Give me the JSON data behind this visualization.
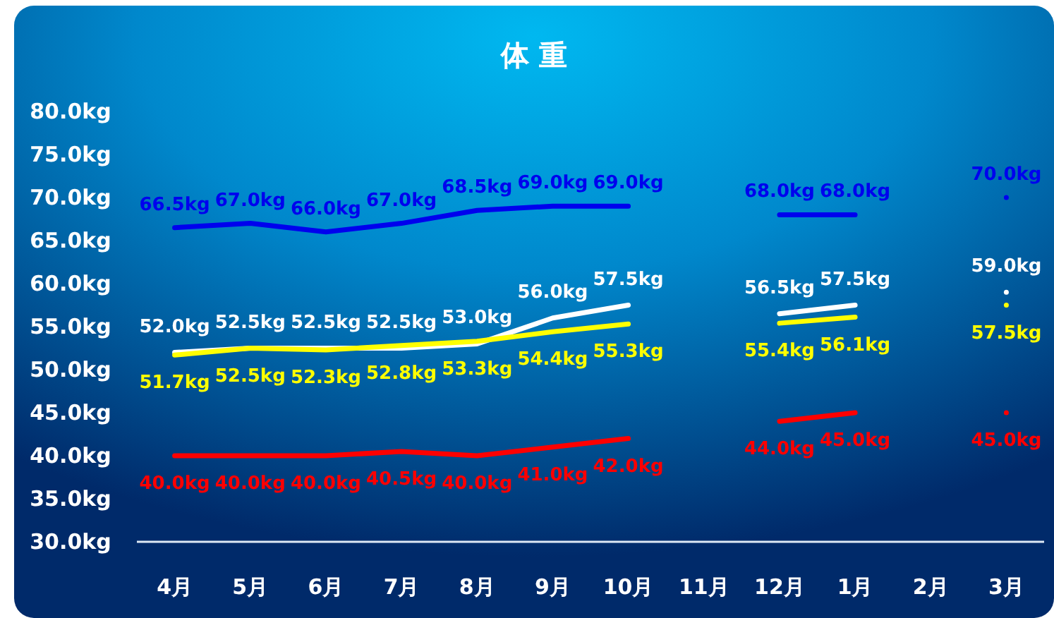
{
  "chart_data": {
    "type": "line",
    "title": "体 重",
    "categories": [
      "4月",
      "5月",
      "6月",
      "7月",
      "8月",
      "9月",
      "10月",
      "11月",
      "12月",
      "1月",
      "2月",
      "3月"
    ],
    "ylim": [
      30,
      80
    ],
    "yticks": [
      {
        "value": 30,
        "label": "30.0kg"
      },
      {
        "value": 35,
        "label": "35.0kg"
      },
      {
        "value": 40,
        "label": "40.0kg"
      },
      {
        "value": 45,
        "label": "45.0kg"
      },
      {
        "value": 50,
        "label": "50.0kg"
      },
      {
        "value": 55,
        "label": "55.0kg"
      },
      {
        "value": 60,
        "label": "60.0kg"
      },
      {
        "value": 65,
        "label": "65.0kg"
      },
      {
        "value": 70,
        "label": "70.0kg"
      },
      {
        "value": 75,
        "label": "75.0kg"
      },
      {
        "value": 80,
        "label": "80.0kg"
      }
    ],
    "grid": false,
    "marker": "none",
    "line_style": "solid",
    "series": [
      {
        "color": "#0000ee",
        "values": [
          66.5,
          67.0,
          66.0,
          67.0,
          68.5,
          69.0,
          69.0,
          null,
          68.0,
          68.0,
          null,
          70.0
        ],
        "value_labels": [
          "66.5kg",
          "67.0kg",
          "66.0kg",
          "67.0kg",
          "68.5kg",
          "69.0kg",
          "69.0kg",
          null,
          "68.0kg",
          "68.0kg",
          null,
          "70.0kg"
        ]
      },
      {
        "color": "#ffffff",
        "values": [
          52.0,
          52.5,
          52.5,
          52.5,
          53.0,
          56.0,
          57.5,
          null,
          56.5,
          57.5,
          null,
          59.0
        ],
        "value_labels": [
          "52.0kg",
          "52.5kg",
          "52.5kg",
          "52.5kg",
          "53.0kg",
          "56.0kg",
          "57.5kg",
          null,
          "56.5kg",
          "57.5kg",
          null,
          "59.0kg"
        ]
      },
      {
        "color": "#ffff00",
        "values": [
          51.7,
          52.5,
          52.3,
          52.8,
          53.3,
          54.4,
          55.3,
          null,
          55.4,
          56.1,
          null,
          57.5
        ],
        "value_labels": [
          "51.7kg",
          "52.5kg",
          "52.3kg",
          "52.8kg",
          "53.3kg",
          "54.4kg",
          "55.3kg",
          null,
          "55.4kg",
          "56.1kg",
          null,
          "57.5kg"
        ]
      },
      {
        "color": "#ff0000",
        "values": [
          40.0,
          40.0,
          40.0,
          40.5,
          40.0,
          41.0,
          42.0,
          null,
          44.0,
          45.0,
          null,
          45.0
        ],
        "value_labels": [
          "40.0kg",
          "40.0kg",
          "40.0kg",
          "40.5kg",
          "40.0kg",
          "41.0kg",
          "42.0kg",
          null,
          "44.0kg",
          "45.0kg",
          null,
          "45.0kg"
        ]
      }
    ]
  }
}
